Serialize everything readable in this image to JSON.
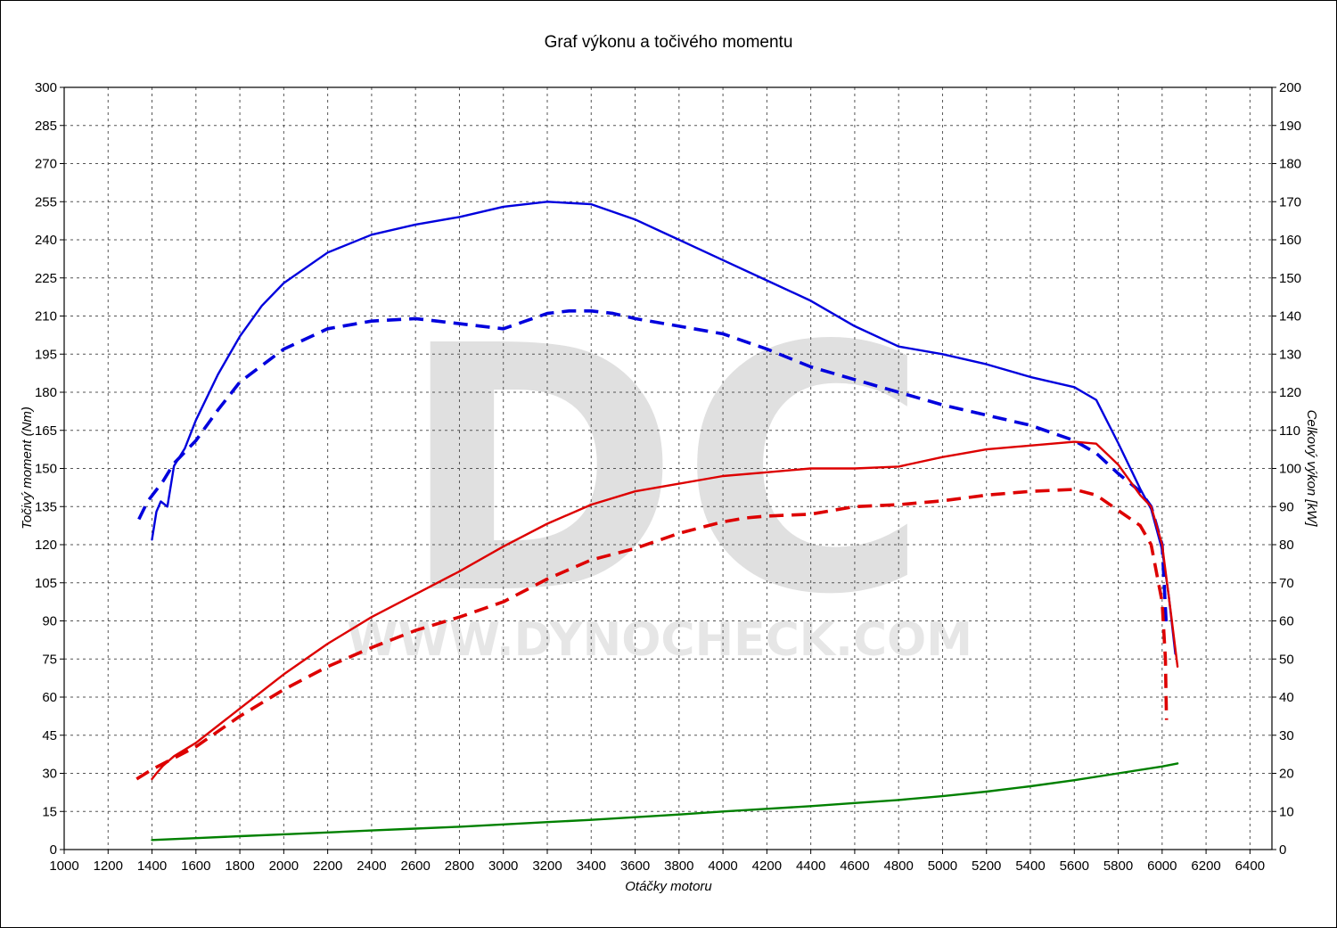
{
  "chart_data": {
    "type": "line",
    "title": "Graf výkonu a točivého momentu",
    "xlabel": "Otáčky motoru",
    "ylabel_left": "Točivý moment (Nm)",
    "ylabel_right": "Celkový výkon [kW]",
    "xlim": [
      1000,
      6500
    ],
    "ylim_left": [
      0,
      300
    ],
    "ylim_right": [
      0,
      200
    ],
    "x_ticks": [
      1000,
      1200,
      1400,
      1600,
      1800,
      2000,
      2200,
      2400,
      2600,
      2800,
      3000,
      3200,
      3400,
      3600,
      3800,
      4000,
      4200,
      4400,
      4600,
      4800,
      5000,
      5200,
      5400,
      5600,
      5800,
      6000,
      6200,
      6400
    ],
    "y_left_ticks": [
      0,
      15,
      30,
      45,
      60,
      75,
      90,
      105,
      120,
      135,
      150,
      165,
      180,
      195,
      210,
      225,
      240,
      255,
      270,
      285,
      300
    ],
    "y_right_ticks": [
      0,
      10,
      20,
      30,
      40,
      50,
      60,
      70,
      80,
      90,
      100,
      110,
      120,
      130,
      140,
      150,
      160,
      170,
      180,
      190,
      200
    ],
    "grid": true,
    "watermark": {
      "logo": "DC",
      "url": "WWW.DYNOCHECK.COM"
    },
    "series": [
      {
        "color": "#0000dd",
        "style": "solid",
        "axis": "left",
        "x": [
          1400,
          1420,
          1440,
          1470,
          1500,
          1550,
          1600,
          1700,
          1800,
          1900,
          2000,
          2200,
          2400,
          2600,
          2800,
          3000,
          3200,
          3400,
          3600,
          3800,
          4000,
          4200,
          4400,
          4600,
          4800,
          5000,
          5200,
          5400,
          5600,
          5700,
          5800,
          5900,
          5950,
          6000,
          6030,
          6060
        ],
        "y": [
          122,
          133,
          137,
          135,
          151,
          158,
          169,
          187,
          202,
          214,
          223,
          235,
          242,
          246,
          249,
          253,
          255,
          254,
          248,
          240,
          232,
          224,
          216,
          206,
          198,
          195,
          191,
          186,
          182,
          177,
          160,
          142,
          134,
          118,
          100,
          77
        ]
      },
      {
        "color": "#0000dd",
        "style": "dashed",
        "axis": "left",
        "x": [
          1340,
          1380,
          1450,
          1500,
          1600,
          1700,
          1800,
          2000,
          2200,
          2400,
          2600,
          2800,
          3000,
          3100,
          3200,
          3300,
          3400,
          3500,
          3600,
          3800,
          4000,
          4200,
          4400,
          4600,
          4800,
          5000,
          5200,
          5400,
          5600,
          5700,
          5800,
          5900,
          5950,
          6000,
          6020
        ],
        "y": [
          130,
          137,
          145,
          152,
          161,
          173,
          184,
          197,
          205,
          208,
          209,
          207,
          205,
          208,
          211,
          212,
          212,
          211,
          209,
          206,
          203,
          197,
          190,
          185,
          180,
          175,
          171,
          167,
          161,
          156,
          148,
          141,
          135,
          120,
          87
        ]
      },
      {
        "color": "#dd0000",
        "style": "solid",
        "axis": "right",
        "x": [
          1400,
          1420,
          1450,
          1500,
          1600,
          1800,
          2000,
          2200,
          2400,
          2600,
          2800,
          3000,
          3200,
          3400,
          3600,
          3800,
          4000,
          4200,
          4400,
          4600,
          4800,
          5000,
          5200,
          5400,
          5600,
          5700,
          5800,
          5900,
          5950,
          6000,
          6040,
          6070
        ],
        "y": [
          18.5,
          20,
          22,
          24.5,
          28,
          37,
          46,
          54,
          61,
          67,
          73,
          79.5,
          85.5,
          90.5,
          94,
          96,
          98,
          99,
          100,
          100,
          100.5,
          103,
          105,
          106,
          107,
          106.5,
          101,
          93,
          90,
          80,
          62,
          48
        ]
      },
      {
        "color": "#dd0000",
        "style": "dashed",
        "axis": "right",
        "x": [
          1330,
          1400,
          1500,
          1600,
          1800,
          2000,
          2200,
          2400,
          2600,
          2800,
          3000,
          3200,
          3400,
          3600,
          3800,
          4000,
          4100,
          4200,
          4400,
          4600,
          4800,
          5000,
          5200,
          5400,
          5600,
          5700,
          5800,
          5900,
          5950,
          6000,
          6015,
          6020
        ],
        "y": [
          18.5,
          21,
          24,
          27,
          35,
          42,
          48,
          53,
          57.5,
          61,
          65,
          71,
          76,
          79,
          83,
          86,
          87,
          87.5,
          88,
          90,
          90.5,
          91.5,
          93,
          94,
          94.5,
          93,
          89,
          85,
          80,
          65,
          50,
          34
        ]
      },
      {
        "color": "#008000",
        "style": "solid",
        "axis": "right",
        "x": [
          1400,
          1600,
          1800,
          2000,
          2200,
          2400,
          2600,
          2800,
          3000,
          3200,
          3400,
          3600,
          3800,
          4000,
          4200,
          4400,
          4600,
          4800,
          5000,
          5200,
          5400,
          5600,
          5800,
          6000,
          6070
        ],
        "y": [
          2.5,
          3,
          3.5,
          4,
          4.5,
          5,
          5.5,
          6,
          6.6,
          7.2,
          7.8,
          8.5,
          9.2,
          10,
          10.7,
          11.4,
          12.2,
          13,
          14,
          15.2,
          16.6,
          18.2,
          20,
          21.8,
          22.6
        ]
      }
    ]
  }
}
